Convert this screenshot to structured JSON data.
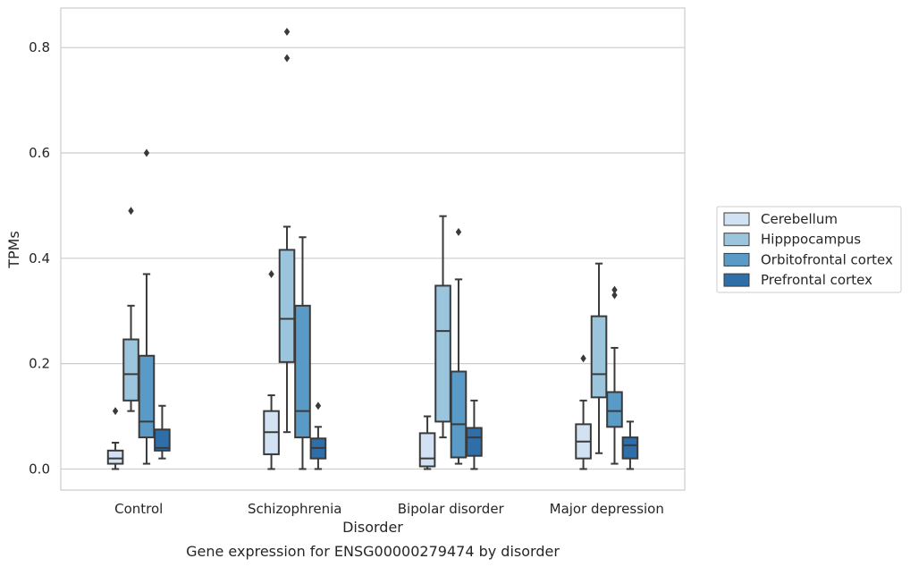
{
  "chart_data": {
    "type": "boxplot",
    "xlabel": "Disorder",
    "ylabel": "TPMs",
    "caption": "Gene expression for ENSG00000279474 by disorder",
    "ylim": [
      -0.04,
      0.875
    ],
    "yticks": [
      0.0,
      0.2,
      0.4,
      0.6,
      0.8
    ],
    "ytick_labels": [
      "0.0",
      "0.2",
      "0.4",
      "0.6",
      "0.8"
    ],
    "grid": "horizontal",
    "legend_position": "right",
    "categories": [
      "Control",
      "Schizophrenia",
      "Bipolar disorder",
      "Major depression"
    ],
    "series": [
      {
        "name": "Cerebellum",
        "color": "#d2e2f2",
        "boxes": [
          {
            "whislo": 0.0,
            "q1": 0.01,
            "med": 0.02,
            "q3": 0.035,
            "whishi": 0.05,
            "fliers": [
              0.11
            ]
          },
          {
            "whislo": 0.0,
            "q1": 0.028,
            "med": 0.07,
            "q3": 0.11,
            "whishi": 0.14,
            "fliers": [
              0.37
            ]
          },
          {
            "whislo": 0.0,
            "q1": 0.005,
            "med": 0.02,
            "q3": 0.068,
            "whishi": 0.1,
            "fliers": []
          },
          {
            "whislo": 0.0,
            "q1": 0.02,
            "med": 0.052,
            "q3": 0.085,
            "whishi": 0.13,
            "fliers": [
              0.21
            ]
          }
        ]
      },
      {
        "name": "Hipppocampus",
        "color": "#9ac5dd",
        "boxes": [
          {
            "whislo": 0.11,
            "q1": 0.13,
            "med": 0.18,
            "q3": 0.246,
            "whishi": 0.31,
            "fliers": [
              0.49
            ]
          },
          {
            "whislo": 0.07,
            "q1": 0.203,
            "med": 0.285,
            "q3": 0.416,
            "whishi": 0.46,
            "fliers": [
              0.78,
              0.83
            ]
          },
          {
            "whislo": 0.06,
            "q1": 0.09,
            "med": 0.262,
            "q3": 0.348,
            "whishi": 0.48,
            "fliers": []
          },
          {
            "whislo": 0.03,
            "q1": 0.136,
            "med": 0.18,
            "q3": 0.29,
            "whishi": 0.39,
            "fliers": []
          }
        ]
      },
      {
        "name": "Orbitofrontal cortex",
        "color": "#5a9ac7",
        "boxes": [
          {
            "whislo": 0.01,
            "q1": 0.06,
            "med": 0.09,
            "q3": 0.215,
            "whishi": 0.37,
            "fliers": [
              0.6
            ]
          },
          {
            "whislo": 0.0,
            "q1": 0.06,
            "med": 0.11,
            "q3": 0.31,
            "whishi": 0.44,
            "fliers": []
          },
          {
            "whislo": 0.01,
            "q1": 0.022,
            "med": 0.085,
            "q3": 0.185,
            "whishi": 0.36,
            "fliers": [
              0.45
            ]
          },
          {
            "whislo": 0.01,
            "q1": 0.08,
            "med": 0.11,
            "q3": 0.146,
            "whishi": 0.23,
            "fliers": [
              0.33,
              0.34
            ]
          }
        ]
      },
      {
        "name": "Prefrontal cortex",
        "color": "#2e6faa",
        "boxes": [
          {
            "whislo": 0.02,
            "q1": 0.035,
            "med": 0.04,
            "q3": 0.075,
            "whishi": 0.12,
            "fliers": []
          },
          {
            "whislo": 0.0,
            "q1": 0.02,
            "med": 0.04,
            "q3": 0.058,
            "whishi": 0.08,
            "fliers": [
              0.12
            ]
          },
          {
            "whislo": 0.0,
            "q1": 0.025,
            "med": 0.06,
            "q3": 0.078,
            "whishi": 0.13,
            "fliers": []
          },
          {
            "whislo": 0.0,
            "q1": 0.02,
            "med": 0.045,
            "q3": 0.06,
            "whishi": 0.09,
            "fliers": []
          }
        ]
      }
    ]
  }
}
